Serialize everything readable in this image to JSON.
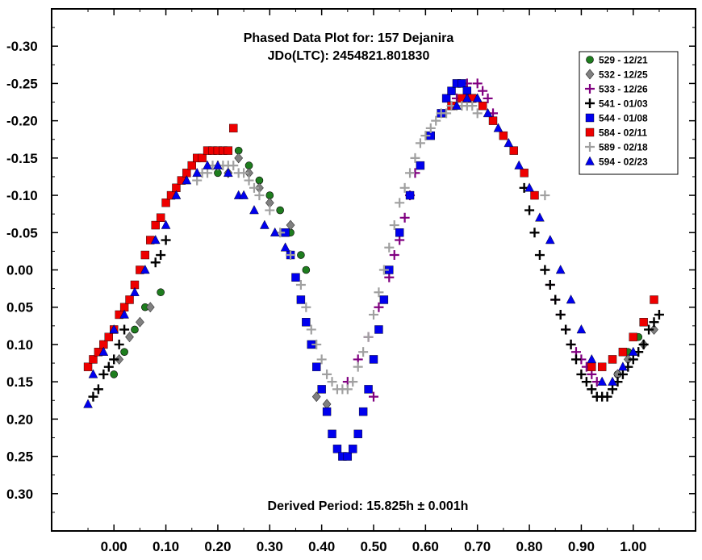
{
  "chart_data": {
    "type": "scatter",
    "title": "Phased Data Plot for: 157 Dejanira",
    "subtitle": "JDo(LTC): 2454821.801830",
    "annotation": "Derived Period: 15.825h  ± 0.001h",
    "xlim": [
      -0.12,
      1.12
    ],
    "ylim": [
      -0.35,
      0.35
    ],
    "y_inverted": true,
    "x_ticks": [
      0.0,
      0.1,
      0.2,
      0.3,
      0.4,
      0.5,
      0.6,
      0.7,
      0.8,
      0.9,
      1.0
    ],
    "x_tick_labels": [
      "0.00",
      "0.10",
      "0.20",
      "0.30",
      "0.40",
      "0.50",
      "0.60",
      "0.70",
      "0.80",
      "0.90",
      "1.00"
    ],
    "y_ticks": [
      -0.3,
      -0.25,
      -0.2,
      -0.15,
      -0.1,
      -0.05,
      0.0,
      0.05,
      0.1,
      0.15,
      0.2,
      0.25,
      0.3
    ],
    "y_tick_labels": [
      "-0.30",
      "-0.25",
      "-0.20",
      "-0.15",
      "-0.10",
      "-0.05",
      "0.00",
      "0.05",
      "0.10",
      "0.15",
      "0.20",
      "0.25",
      "0.30"
    ],
    "grid": false,
    "legend_position": "top-right",
    "series": [
      {
        "name": "529 - 12/21",
        "marker": "circle",
        "color": "#1e7d1e",
        "x": [
          0.0,
          0.02,
          0.04,
          0.06,
          0.09,
          0.2,
          0.22,
          0.24,
          0.26,
          0.28,
          0.3,
          0.32,
          0.34,
          0.36,
          0.37,
          0.97,
          0.99,
          1.01
        ],
        "y": [
          0.14,
          0.11,
          0.08,
          0.05,
          0.03,
          -0.13,
          -0.16,
          -0.16,
          -0.14,
          -0.12,
          -0.1,
          -0.08,
          -0.05,
          -0.02,
          0.0,
          0.14,
          0.11,
          0.09
        ]
      },
      {
        "name": "532 - 12/25",
        "marker": "diamond",
        "color": "#808080",
        "x": [
          0.01,
          0.03,
          0.05,
          0.07,
          0.22,
          0.24,
          0.26,
          0.28,
          0.3,
          0.34,
          0.39,
          0.41,
          0.97,
          0.99,
          1.02,
          1.04
        ],
        "y": [
          0.12,
          0.09,
          0.07,
          0.05,
          -0.13,
          -0.15,
          -0.13,
          -0.11,
          -0.09,
          -0.06,
          0.17,
          0.18,
          0.14,
          0.12,
          0.1,
          0.08
        ]
      },
      {
        "name": "533 - 12/26",
        "marker": "plus",
        "color": "#800080",
        "x": [
          0.45,
          0.47,
          0.49,
          0.5,
          0.51,
          0.53,
          0.54,
          0.55,
          0.56,
          0.57,
          0.58,
          0.66,
          0.68,
          0.7,
          0.71,
          0.72,
          0.73,
          0.84,
          0.85,
          0.86,
          0.87,
          0.88,
          0.89,
          0.9,
          0.91,
          0.92,
          0.93
        ],
        "y": [
          0.15,
          0.12,
          0.09,
          0.17,
          0.05,
          0.01,
          -0.02,
          -0.04,
          -0.07,
          -0.1,
          -0.13,
          -0.23,
          -0.25,
          -0.25,
          -0.24,
          -0.23,
          -0.21,
          0.02,
          0.04,
          0.06,
          0.08,
          0.1,
          0.11,
          0.12,
          0.13,
          0.14,
          0.15
        ]
      },
      {
        "name": "541 - 01/03",
        "marker": "cross",
        "color": "#000000",
        "x": [
          -0.04,
          -0.03,
          -0.02,
          -0.01,
          0.0,
          0.01,
          0.02,
          0.08,
          0.09,
          0.1,
          0.79,
          0.8,
          0.81,
          0.82,
          0.83,
          0.84,
          0.85,
          0.86,
          0.87,
          0.88,
          0.89,
          0.9,
          0.91,
          0.92,
          0.93,
          0.94,
          0.95,
          0.96,
          0.97,
          0.98,
          0.99,
          1.0,
          1.01,
          1.02,
          1.03,
          1.04,
          1.05
        ],
        "y": [
          0.17,
          0.16,
          0.14,
          0.13,
          0.12,
          0.1,
          0.08,
          -0.01,
          -0.02,
          -0.04,
          -0.11,
          -0.08,
          -0.05,
          -0.02,
          0.0,
          0.02,
          0.04,
          0.06,
          0.08,
          0.1,
          0.12,
          0.14,
          0.15,
          0.16,
          0.17,
          0.17,
          0.17,
          0.16,
          0.15,
          0.14,
          0.13,
          0.12,
          0.11,
          0.1,
          0.08,
          0.07,
          0.06
        ]
      },
      {
        "name": "544 - 01/08",
        "marker": "square",
        "color": "#0000ee",
        "x": [
          0.33,
          0.34,
          0.35,
          0.36,
          0.37,
          0.38,
          0.39,
          0.4,
          0.41,
          0.42,
          0.43,
          0.44,
          0.45,
          0.46,
          0.47,
          0.48,
          0.49,
          0.5,
          0.51,
          0.52,
          0.53,
          0.55,
          0.57,
          0.59,
          0.61,
          0.63,
          0.64,
          0.65,
          0.66,
          0.67,
          0.68,
          0.69
        ],
        "y": [
          -0.05,
          -0.02,
          0.01,
          0.04,
          0.07,
          0.1,
          0.13,
          0.16,
          0.19,
          0.22,
          0.24,
          0.25,
          0.25,
          0.24,
          0.22,
          0.19,
          0.16,
          0.12,
          0.08,
          0.04,
          0.0,
          -0.05,
          -0.1,
          -0.14,
          -0.18,
          -0.21,
          -0.23,
          -0.24,
          -0.25,
          -0.25,
          -0.24,
          -0.23
        ]
      },
      {
        "name": "584 - 02/11",
        "marker": "square",
        "color": "#ee0000",
        "x": [
          -0.05,
          -0.04,
          -0.03,
          -0.02,
          -0.01,
          0.0,
          0.01,
          0.02,
          0.03,
          0.04,
          0.05,
          0.06,
          0.07,
          0.08,
          0.09,
          0.1,
          0.11,
          0.12,
          0.13,
          0.14,
          0.15,
          0.16,
          0.17,
          0.18,
          0.19,
          0.2,
          0.21,
          0.22,
          0.23,
          0.65,
          0.67,
          0.69,
          0.71,
          0.73,
          0.75,
          0.77,
          0.79,
          0.81,
          0.92,
          0.94,
          0.96,
          0.98,
          1.0,
          1.02,
          1.04
        ],
        "y": [
          0.13,
          0.12,
          0.11,
          0.1,
          0.09,
          0.08,
          0.06,
          0.05,
          0.04,
          0.02,
          0.0,
          -0.02,
          -0.04,
          -0.06,
          -0.07,
          -0.09,
          -0.1,
          -0.11,
          -0.12,
          -0.13,
          -0.14,
          -0.15,
          -0.15,
          -0.16,
          -0.16,
          -0.16,
          -0.16,
          -0.16,
          -0.19,
          -0.22,
          -0.23,
          -0.23,
          -0.22,
          -0.2,
          -0.18,
          -0.16,
          -0.13,
          -0.1,
          0.13,
          0.13,
          0.12,
          0.11,
          0.09,
          0.07,
          0.04
        ]
      },
      {
        "name": "589 - 02/18",
        "marker": "plus",
        "color": "#a0a0a0",
        "x": [
          0.16,
          0.17,
          0.18,
          0.19,
          0.2,
          0.21,
          0.22,
          0.23,
          0.24,
          0.25,
          0.26,
          0.27,
          0.28,
          0.3,
          0.32,
          0.34,
          0.36,
          0.37,
          0.38,
          0.39,
          0.4,
          0.41,
          0.42,
          0.43,
          0.44,
          0.45,
          0.46,
          0.47,
          0.48,
          0.49,
          0.5,
          0.51,
          0.52,
          0.53,
          0.54,
          0.55,
          0.56,
          0.57,
          0.58,
          0.59,
          0.6,
          0.61,
          0.62,
          0.63,
          0.64,
          0.65,
          0.66,
          0.67,
          0.68,
          0.69,
          0.7,
          0.83
        ],
        "y": [
          -0.12,
          -0.13,
          -0.13,
          -0.14,
          -0.14,
          -0.14,
          -0.14,
          -0.14,
          -0.13,
          -0.13,
          -0.12,
          -0.11,
          -0.1,
          -0.08,
          -0.05,
          -0.02,
          0.02,
          0.05,
          0.08,
          0.1,
          0.12,
          0.14,
          0.15,
          0.16,
          0.16,
          0.16,
          0.15,
          0.13,
          0.11,
          0.09,
          0.06,
          0.03,
          0.0,
          -0.03,
          -0.06,
          -0.09,
          -0.11,
          -0.13,
          -0.15,
          -0.17,
          -0.18,
          -0.19,
          -0.2,
          -0.21,
          -0.21,
          -0.22,
          -0.22,
          -0.22,
          -0.22,
          -0.22,
          -0.21,
          -0.1
        ]
      },
      {
        "name": "594 - 02/23",
        "marker": "triangle",
        "color": "#0000ee",
        "x": [
          -0.05,
          -0.04,
          -0.02,
          0.0,
          0.02,
          0.04,
          0.06,
          0.08,
          0.1,
          0.12,
          0.14,
          0.16,
          0.18,
          0.2,
          0.22,
          0.24,
          0.25,
          0.27,
          0.29,
          0.31,
          0.33,
          0.66,
          0.68,
          0.7,
          0.72,
          0.74,
          0.76,
          0.78,
          0.8,
          0.82,
          0.84,
          0.86,
          0.88,
          0.9,
          0.92,
          0.94,
          0.96,
          0.98,
          1.0
        ],
        "y": [
          0.18,
          0.14,
          0.11,
          0.08,
          0.06,
          0.03,
          0.0,
          -0.04,
          -0.06,
          -0.1,
          -0.12,
          -0.13,
          -0.14,
          -0.14,
          -0.13,
          -0.1,
          -0.1,
          -0.08,
          -0.06,
          -0.05,
          -0.03,
          -0.22,
          -0.23,
          -0.23,
          -0.21,
          -0.19,
          -0.17,
          -0.14,
          -0.11,
          -0.07,
          -0.04,
          0.0,
          0.04,
          0.08,
          0.12,
          0.15,
          0.15,
          0.13,
          0.11
        ]
      }
    ]
  }
}
